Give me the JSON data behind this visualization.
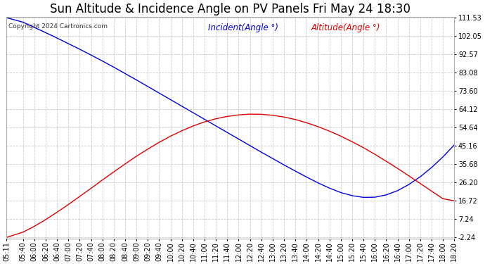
{
  "title": "Sun Altitude & Incidence Angle on PV Panels Fri May 24 18:30",
  "copyright": "Copyright 2024 Cartronics.com",
  "legend_incident": "Incident(Angle °)",
  "legend_altitude": "Altitude(Angle °)",
  "incident_color": "#0000dd",
  "altitude_color": "#dd0000",
  "background_color": "#ffffff",
  "plot_bg_color": "#ffffff",
  "grid_color": "#cccccc",
  "yticks": [
    111.53,
    102.05,
    92.57,
    83.08,
    73.6,
    64.12,
    54.64,
    45.16,
    35.68,
    26.2,
    16.72,
    7.24,
    -2.24
  ],
  "ylim": [
    -2.24,
    111.53
  ],
  "x_labels": [
    "05:11",
    "05:40",
    "06:00",
    "06:20",
    "06:40",
    "07:00",
    "07:20",
    "07:40",
    "08:00",
    "08:20",
    "08:40",
    "09:00",
    "09:20",
    "09:40",
    "10:00",
    "10:20",
    "10:40",
    "11:00",
    "11:20",
    "11:40",
    "12:00",
    "12:20",
    "12:40",
    "13:00",
    "13:20",
    "13:40",
    "14:00",
    "14:20",
    "14:40",
    "15:00",
    "15:20",
    "15:40",
    "16:00",
    "16:20",
    "16:40",
    "17:00",
    "17:20",
    "17:40",
    "18:00",
    "18:20"
  ],
  "title_fontsize": 12,
  "tick_fontsize": 7,
  "legend_fontsize": 8.5,
  "copyright_fontsize": 6.5,
  "incident_values": [
    111.53,
    109.2,
    106.5,
    103.8,
    101.0,
    98.1,
    95.2,
    92.2,
    89.1,
    85.9,
    82.6,
    79.3,
    75.9,
    72.5,
    69.1,
    65.7,
    62.3,
    58.9,
    55.5,
    52.1,
    48.7,
    45.3,
    41.9,
    38.6,
    35.3,
    32.1,
    29.0,
    26.0,
    23.3,
    21.0,
    19.4,
    18.5,
    18.6,
    19.8,
    22.0,
    25.2,
    29.2,
    34.0,
    39.5,
    45.7
  ],
  "altitude_values": [
    -2.24,
    0.5,
    3.5,
    7.0,
    10.8,
    14.8,
    19.0,
    23.2,
    27.5,
    31.7,
    35.8,
    39.8,
    43.5,
    47.0,
    50.2,
    53.0,
    55.5,
    57.6,
    59.2,
    60.4,
    61.2,
    61.6,
    61.5,
    61.0,
    60.1,
    58.8,
    57.1,
    55.1,
    52.8,
    50.2,
    47.3,
    44.2,
    40.8,
    37.2,
    33.5,
    29.6,
    25.7,
    21.7,
    17.8,
    16.72
  ]
}
